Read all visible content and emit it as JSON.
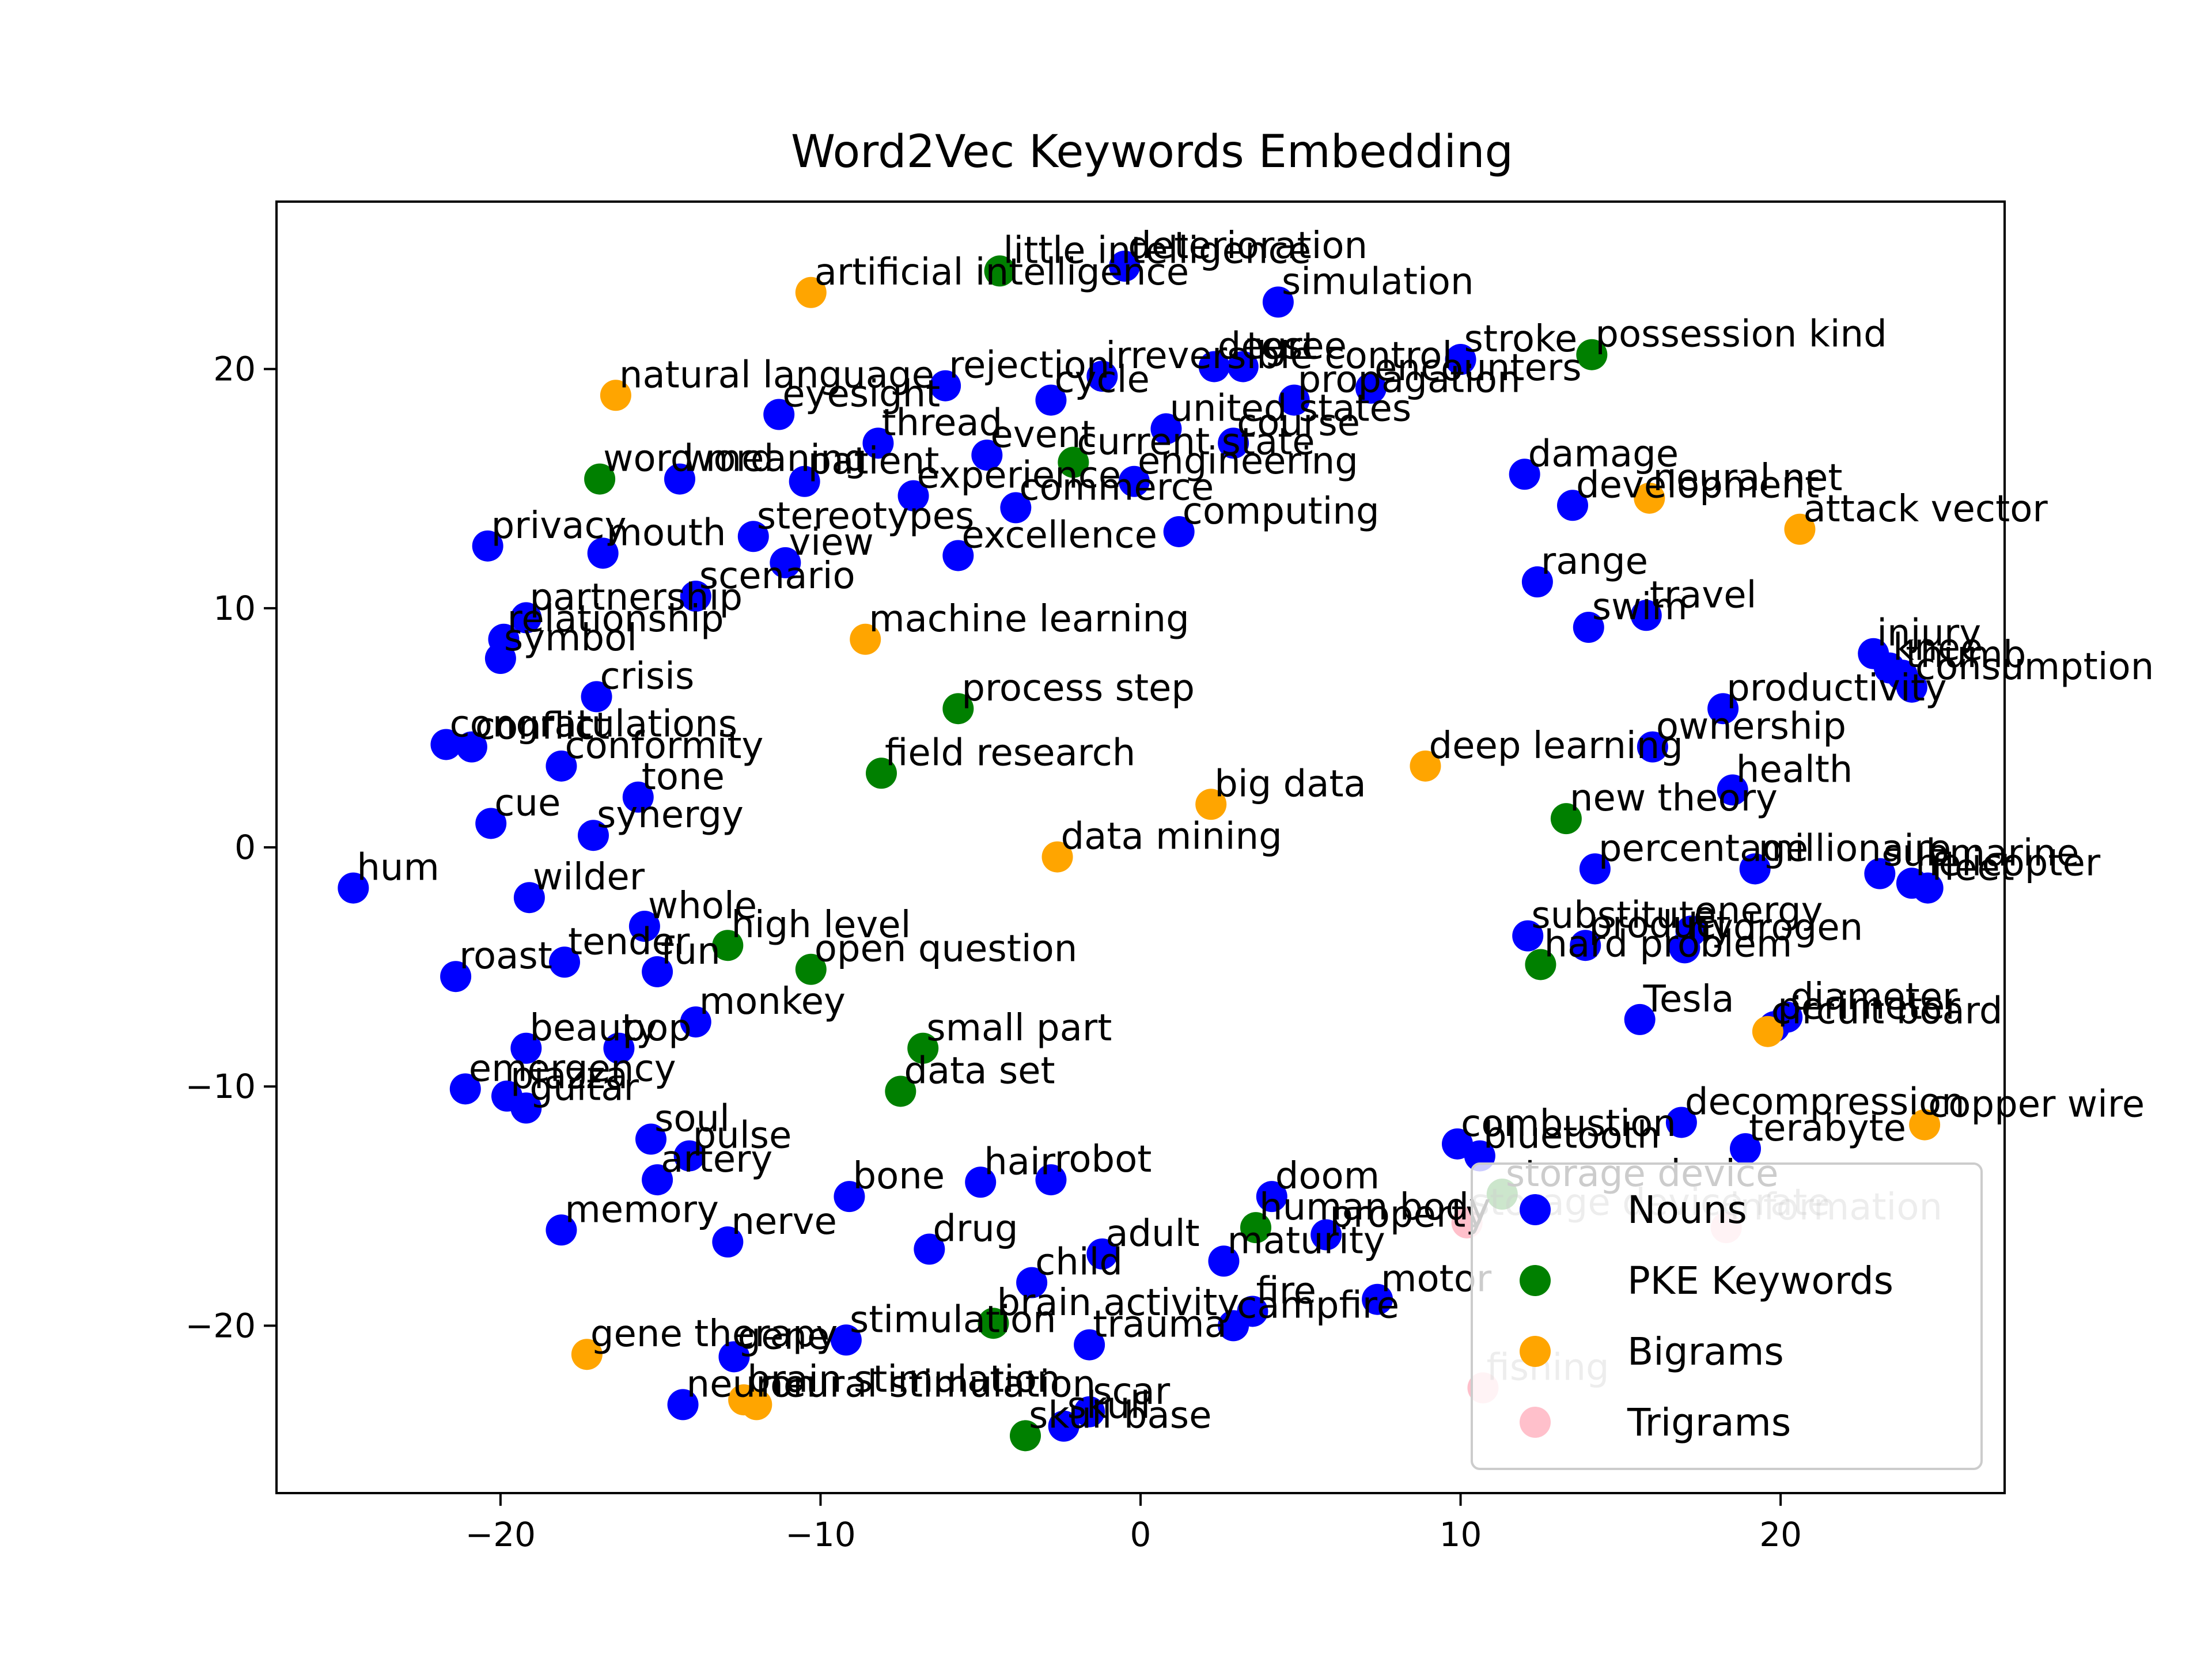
{
  "chart_data": {
    "type": "scatter",
    "title": "Word2Vec Keywords Embedding",
    "xlabel": "",
    "ylabel": "",
    "xlim": [
      -27,
      27
    ],
    "ylim": [
      -27,
      27
    ],
    "xticks": [
      -20,
      -10,
      0,
      10,
      20
    ],
    "yticks": [
      -20,
      -10,
      0,
      10,
      20
    ],
    "grid": false,
    "legend_position": "bottom-right",
    "colors": {
      "Nouns": "#0000ff",
      "PKE Keywords": "#008000",
      "Bigrams": "#ffa500",
      "Trigrams": "#ffc0cb"
    },
    "series": [
      {
        "name": "Nouns",
        "color": "#0000ff",
        "points": [
          {
            "x": -0.5,
            "y": 24.3,
            "label": "deterioration"
          },
          {
            "x": 4.3,
            "y": 22.8,
            "label": "simulation"
          },
          {
            "x": 10.0,
            "y": 20.4,
            "label": "stroke"
          },
          {
            "x": 2.3,
            "y": 20.1,
            "label": "degree"
          },
          {
            "x": 3.2,
            "y": 20.1,
            "label": "test"
          },
          {
            "x": 7.2,
            "y": 19.2,
            "label": "encounters"
          },
          {
            "x": -6.1,
            "y": 19.3,
            "label": "rejection"
          },
          {
            "x": -1.2,
            "y": 19.7,
            "label": "irreversible control"
          },
          {
            "x": -2.8,
            "y": 18.7,
            "label": "cycle"
          },
          {
            "x": -11.3,
            "y": 18.1,
            "label": "eyesight"
          },
          {
            "x": 4.8,
            "y": 18.7,
            "label": "propagation"
          },
          {
            "x": 0.8,
            "y": 17.5,
            "label": "united states"
          },
          {
            "x": -8.2,
            "y": 16.9,
            "label": "thread"
          },
          {
            "x": 2.9,
            "y": 16.9,
            "label": "course"
          },
          {
            "x": -4.8,
            "y": 16.4,
            "label": "event"
          },
          {
            "x": 12.0,
            "y": 15.6,
            "label": "damage"
          },
          {
            "x": -14.4,
            "y": 15.4,
            "label": "word"
          },
          {
            "x": -10.5,
            "y": 15.3,
            "label": "patient"
          },
          {
            "x": -0.2,
            "y": 15.3,
            "label": "engineering"
          },
          {
            "x": -7.1,
            "y": 14.7,
            "label": "experience"
          },
          {
            "x": 13.5,
            "y": 14.3,
            "label": "development"
          },
          {
            "x": -3.9,
            "y": 14.2,
            "label": "commerce"
          },
          {
            "x": -12.1,
            "y": 13.0,
            "label": "stereotypes"
          },
          {
            "x": 1.2,
            "y": 13.2,
            "label": "computing"
          },
          {
            "x": -20.4,
            "y": 12.6,
            "label": "privacy"
          },
          {
            "x": -16.8,
            "y": 12.3,
            "label": "mouth"
          },
          {
            "x": -11.1,
            "y": 11.9,
            "label": "view"
          },
          {
            "x": -5.7,
            "y": 12.2,
            "label": "excellence"
          },
          {
            "x": 12.4,
            "y": 11.1,
            "label": "range"
          },
          {
            "x": -13.9,
            "y": 10.5,
            "label": "scenario"
          },
          {
            "x": 15.8,
            "y": 9.7,
            "label": "travel"
          },
          {
            "x": -19.2,
            "y": 9.6,
            "label": "partnership"
          },
          {
            "x": -19.9,
            "y": 8.7,
            "label": "relationship"
          },
          {
            "x": 14.0,
            "y": 9.2,
            "label": "swim"
          },
          {
            "x": -20.0,
            "y": 7.9,
            "label": "symbol"
          },
          {
            "x": 22.9,
            "y": 8.1,
            "label": "injury"
          },
          {
            "x": 23.4,
            "y": 7.5,
            "label": "knee"
          },
          {
            "x": 23.8,
            "y": 7.2,
            "label": "thumb"
          },
          {
            "x": -17.0,
            "y": 6.3,
            "label": "crisis"
          },
          {
            "x": 24.1,
            "y": 6.7,
            "label": "consumption"
          },
          {
            "x": 18.2,
            "y": 5.8,
            "label": "productivity"
          },
          {
            "x": -21.7,
            "y": 4.3,
            "label": "congratulations"
          },
          {
            "x": -20.9,
            "y": 4.2,
            "label": "conflict"
          },
          {
            "x": -18.1,
            "y": 3.4,
            "label": "conformity"
          },
          {
            "x": 16.0,
            "y": 4.2,
            "label": "ownership"
          },
          {
            "x": -15.7,
            "y": 2.1,
            "label": "tone"
          },
          {
            "x": 18.5,
            "y": 2.4,
            "label": "health"
          },
          {
            "x": -20.3,
            "y": 1.0,
            "label": "cue"
          },
          {
            "x": -17.1,
            "y": 0.5,
            "label": "synergy"
          },
          {
            "x": -24.6,
            "y": -1.7,
            "label": "hum"
          },
          {
            "x": -19.1,
            "y": -2.1,
            "label": "wilder"
          },
          {
            "x": 23.1,
            "y": -1.1,
            "label": "submarine"
          },
          {
            "x": 24.1,
            "y": -1.5,
            "label": "helicopter"
          },
          {
            "x": 24.6,
            "y": -1.7,
            "label": "fleet"
          },
          {
            "x": 19.2,
            "y": -0.9,
            "label": "millionaire"
          },
          {
            "x": 14.2,
            "y": -0.9,
            "label": "percentage"
          },
          {
            "x": -15.5,
            "y": -3.3,
            "label": "whole"
          },
          {
            "x": 12.1,
            "y": -3.7,
            "label": "substitute"
          },
          {
            "x": 17.2,
            "y": -3.5,
            "label": "energy"
          },
          {
            "x": 17.0,
            "y": -4.2,
            "label": "hydrogen"
          },
          {
            "x": 13.9,
            "y": -4.1,
            "label": "product"
          },
          {
            "x": -21.4,
            "y": -5.4,
            "label": "roast"
          },
          {
            "x": -18.0,
            "y": -4.8,
            "label": "tender"
          },
          {
            "x": -15.1,
            "y": -5.2,
            "label": "fun"
          },
          {
            "x": -13.9,
            "y": -7.3,
            "label": "monkey"
          },
          {
            "x": 15.6,
            "y": -7.2,
            "label": "Tesla"
          },
          {
            "x": 20.2,
            "y": -7.1,
            "label": "diameter"
          },
          {
            "x": 19.8,
            "y": -7.5,
            "label": "perimeter"
          },
          {
            "x": -16.3,
            "y": -8.4,
            "label": "pop"
          },
          {
            "x": -19.2,
            "y": -8.4,
            "label": "beauty"
          },
          {
            "x": -21.1,
            "y": -10.1,
            "label": "emergency"
          },
          {
            "x": -19.8,
            "y": -10.4,
            "label": "piazza"
          },
          {
            "x": -19.2,
            "y": -10.9,
            "label": "guitar"
          },
          {
            "x": 16.9,
            "y": -11.5,
            "label": "decompression"
          },
          {
            "x": 18.9,
            "y": -12.6,
            "label": "terabyte"
          },
          {
            "x": 9.9,
            "y": -12.4,
            "label": "combustion"
          },
          {
            "x": 10.6,
            "y": -12.9,
            "label": "bluetooth"
          },
          {
            "x": -15.3,
            "y": -12.2,
            "label": "soul"
          },
          {
            "x": -14.1,
            "y": -12.9,
            "label": "pulse"
          },
          {
            "x": -15.1,
            "y": -13.9,
            "label": "artery"
          },
          {
            "x": -9.1,
            "y": -14.6,
            "label": "bone"
          },
          {
            "x": -5.0,
            "y": -14.0,
            "label": "hair"
          },
          {
            "x": -2.8,
            "y": -13.9,
            "label": "robot"
          },
          {
            "x": 4.1,
            "y": -14.6,
            "label": "doom"
          },
          {
            "x": -18.1,
            "y": -16.0,
            "label": "memory"
          },
          {
            "x": -12.9,
            "y": -16.5,
            "label": "nerve"
          },
          {
            "x": -6.6,
            "y": -16.8,
            "label": "drug"
          },
          {
            "x": 2.6,
            "y": -17.3,
            "label": "maturity"
          },
          {
            "x": 5.8,
            "y": -16.2,
            "label": "property"
          },
          {
            "x": -1.2,
            "y": -17.0,
            "label": "adult"
          },
          {
            "x": -3.4,
            "y": -18.2,
            "label": "child"
          },
          {
            "x": 3.5,
            "y": -19.4,
            "label": "fire"
          },
          {
            "x": 7.4,
            "y": -18.9,
            "label": "motor"
          },
          {
            "x": 2.9,
            "y": -20.0,
            "label": "campfire"
          },
          {
            "x": -9.2,
            "y": -20.6,
            "label": "stimulation"
          },
          {
            "x": -1.6,
            "y": -20.8,
            "label": "trauma"
          },
          {
            "x": -12.7,
            "y": -21.3,
            "label": "gene"
          },
          {
            "x": -14.3,
            "y": -23.3,
            "label": "neuron"
          },
          {
            "x": -1.6,
            "y": -23.6,
            "label": "scar"
          },
          {
            "x": -2.4,
            "y": -24.2,
            "label": "skull"
          }
        ]
      },
      {
        "name": "PKE Keywords",
        "color": "#008000",
        "points": [
          {
            "x": -4.4,
            "y": 24.1,
            "label": "little intelligence"
          },
          {
            "x": 14.1,
            "y": 20.6,
            "label": "possession kind"
          },
          {
            "x": -16.9,
            "y": 15.4,
            "label": "word meaning"
          },
          {
            "x": -2.1,
            "y": 16.1,
            "label": "current state"
          },
          {
            "x": -5.7,
            "y": 5.8,
            "label": "process step"
          },
          {
            "x": -8.1,
            "y": 3.1,
            "label": "field research"
          },
          {
            "x": 13.3,
            "y": 1.2,
            "label": "new theory"
          },
          {
            "x": -12.9,
            "y": -4.1,
            "label": "high level"
          },
          {
            "x": -10.3,
            "y": -5.1,
            "label": "open question"
          },
          {
            "x": 12.5,
            "y": -4.9,
            "label": "hard problem"
          },
          {
            "x": -6.8,
            "y": -8.4,
            "label": "small part"
          },
          {
            "x": -7.5,
            "y": -10.2,
            "label": "data set"
          },
          {
            "x": 11.3,
            "y": -14.5,
            "label": "storage device"
          },
          {
            "x": 3.6,
            "y": -15.9,
            "label": "human body"
          },
          {
            "x": -4.6,
            "y": -19.9,
            "label": "brain activity"
          },
          {
            "x": -3.6,
            "y": -24.6,
            "label": "skull base"
          }
        ]
      },
      {
        "name": "Bigrams",
        "color": "#ffa500",
        "points": [
          {
            "x": -10.3,
            "y": 23.2,
            "label": "artificial intelligence"
          },
          {
            "x": -16.4,
            "y": 18.9,
            "label": "natural language"
          },
          {
            "x": 15.9,
            "y": 14.6,
            "label": "neural net"
          },
          {
            "x": 20.6,
            "y": 13.3,
            "label": "attack vector"
          },
          {
            "x": -8.6,
            "y": 8.7,
            "label": "machine learning"
          },
          {
            "x": 8.9,
            "y": 3.4,
            "label": "deep learning"
          },
          {
            "x": 2.2,
            "y": 1.8,
            "label": "big data"
          },
          {
            "x": -2.6,
            "y": -0.4,
            "label": "data mining"
          },
          {
            "x": 19.6,
            "y": -7.7,
            "label": "circuit board"
          },
          {
            "x": 24.5,
            "y": -11.6,
            "label": "copper wire"
          },
          {
            "x": -17.3,
            "y": -21.2,
            "label": "gene therapy"
          },
          {
            "x": -12.4,
            "y": -23.1,
            "label": "brain stimulation"
          },
          {
            "x": -12.0,
            "y": -23.3,
            "label": "neural stimulation"
          }
        ]
      },
      {
        "name": "Trigrams",
        "color": "#ffc0cb",
        "points": [
          {
            "x": 10.2,
            "y": -15.7,
            "label": "storage device rate"
          },
          {
            "x": 18.3,
            "y": -15.9,
            "label": "information"
          },
          {
            "x": 10.7,
            "y": -22.6,
            "label": "fishing"
          }
        ]
      }
    ],
    "legend": [
      "Nouns",
      "PKE Keywords",
      "Bigrams",
      "Trigrams"
    ]
  }
}
